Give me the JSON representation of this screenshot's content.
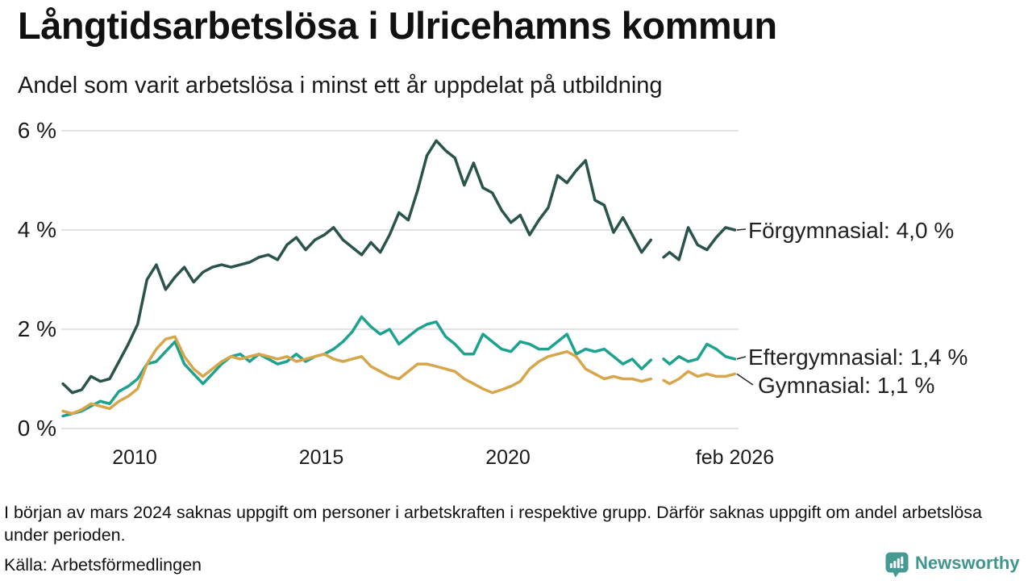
{
  "chart_data": {
    "type": "line",
    "title": "Långtidsarbetslösa i Ulricehamns kommun",
    "subtitle": "Andel som varit arbetslösa i minst ett år uppdelat på utbildning",
    "x_unit": "decimal_year",
    "xlim": [
      2008.08,
      2026.08
    ],
    "ylim": [
      0,
      6.3
    ],
    "grid": "horizontal",
    "y_ticks": [
      {
        "value": 0,
        "label": "0 %"
      },
      {
        "value": 2,
        "label": "2 %"
      },
      {
        "value": 4,
        "label": "4 %"
      },
      {
        "value": 6,
        "label": "6 %"
      }
    ],
    "x_ticks": [
      {
        "value": 2010,
        "label": "2010"
      },
      {
        "value": 2015,
        "label": "2015"
      },
      {
        "value": 2020,
        "label": "2020"
      },
      {
        "value": 2026.08,
        "label": "feb 2026"
      }
    ],
    "x": [
      2008.08,
      2008.33,
      2008.58,
      2008.83,
      2009.08,
      2009.33,
      2009.58,
      2009.83,
      2010.08,
      2010.33,
      2010.58,
      2010.83,
      2011.08,
      2011.33,
      2011.58,
      2011.83,
      2012.08,
      2012.33,
      2012.58,
      2012.83,
      2013.08,
      2013.33,
      2013.58,
      2013.83,
      2014.08,
      2014.33,
      2014.58,
      2014.83,
      2015.08,
      2015.33,
      2015.58,
      2015.83,
      2016.08,
      2016.33,
      2016.58,
      2016.83,
      2017.08,
      2017.33,
      2017.58,
      2017.83,
      2018.08,
      2018.33,
      2018.58,
      2018.83,
      2019.08,
      2019.33,
      2019.58,
      2019.83,
      2020.08,
      2020.33,
      2020.58,
      2020.83,
      2021.08,
      2021.33,
      2021.58,
      2021.83,
      2022.08,
      2022.33,
      2022.58,
      2022.83,
      2023.08,
      2023.33,
      2023.58,
      2023.83,
      2024.0,
      2024.17,
      2024.33,
      2024.58,
      2024.83,
      2025.08,
      2025.33,
      2025.58,
      2025.83,
      2026.08
    ],
    "series": [
      {
        "name": "Förgymnasial",
        "end_label": "Förgymnasial: 4,0 %",
        "end_value": "4,0 %",
        "color": "#2a544b",
        "values": [
          0.9,
          0.72,
          0.78,
          1.05,
          0.95,
          1.0,
          1.35,
          1.7,
          2.1,
          3.0,
          3.3,
          2.8,
          3.05,
          3.25,
          2.95,
          3.15,
          3.25,
          3.3,
          3.25,
          3.3,
          3.35,
          3.45,
          3.5,
          3.4,
          3.7,
          3.85,
          3.6,
          3.8,
          3.9,
          4.05,
          3.8,
          3.65,
          3.5,
          3.75,
          3.55,
          3.9,
          4.35,
          4.2,
          4.8,
          5.5,
          5.8,
          5.6,
          5.45,
          4.9,
          5.35,
          4.85,
          4.75,
          4.4,
          4.15,
          4.3,
          3.9,
          4.2,
          4.45,
          5.1,
          4.95,
          5.2,
          5.4,
          4.6,
          4.5,
          3.95,
          4.25,
          3.9,
          3.55,
          3.8,
          null,
          3.45,
          3.55,
          3.4,
          4.05,
          3.7,
          3.6,
          3.85,
          4.05,
          4.0
        ]
      },
      {
        "name": "Eftergymnasial",
        "end_label": "Eftergymnasial: 1,4 %",
        "end_value": "1,4 %",
        "color": "#1ca28e",
        "values": [
          0.25,
          0.3,
          0.35,
          0.45,
          0.55,
          0.5,
          0.75,
          0.85,
          1.0,
          1.3,
          1.35,
          1.55,
          1.75,
          1.3,
          1.1,
          0.9,
          1.1,
          1.3,
          1.45,
          1.5,
          1.35,
          1.5,
          1.4,
          1.3,
          1.35,
          1.5,
          1.35,
          1.45,
          1.5,
          1.6,
          1.75,
          1.95,
          2.25,
          2.05,
          1.9,
          2.0,
          1.7,
          1.85,
          2.0,
          2.1,
          2.15,
          1.85,
          1.7,
          1.5,
          1.5,
          1.9,
          1.75,
          1.6,
          1.55,
          1.75,
          1.7,
          1.6,
          1.6,
          1.75,
          1.9,
          1.5,
          1.6,
          1.55,
          1.6,
          1.45,
          1.3,
          1.4,
          1.2,
          1.38,
          null,
          1.4,
          1.3,
          1.45,
          1.35,
          1.4,
          1.7,
          1.6,
          1.45,
          1.4
        ]
      },
      {
        "name": "Gymnasial",
        "end_label": "Gymnasial: 1,1 %",
        "end_value": "1,1 %",
        "color": "#d7a64b",
        "values": [
          0.35,
          0.3,
          0.38,
          0.5,
          0.45,
          0.4,
          0.55,
          0.65,
          0.8,
          1.3,
          1.6,
          1.8,
          1.85,
          1.45,
          1.2,
          1.05,
          1.2,
          1.35,
          1.45,
          1.4,
          1.45,
          1.5,
          1.45,
          1.4,
          1.45,
          1.35,
          1.4,
          1.45,
          1.5,
          1.4,
          1.35,
          1.4,
          1.45,
          1.25,
          1.15,
          1.05,
          1.0,
          1.15,
          1.3,
          1.3,
          1.25,
          1.2,
          1.15,
          1.0,
          0.9,
          0.8,
          0.72,
          0.78,
          0.85,
          0.95,
          1.2,
          1.35,
          1.45,
          1.5,
          1.55,
          1.45,
          1.2,
          1.1,
          1.0,
          1.05,
          1.0,
          1.0,
          0.95,
          1.0,
          null,
          0.97,
          0.9,
          1.0,
          1.15,
          1.05,
          1.1,
          1.05,
          1.05,
          1.1
        ]
      }
    ]
  },
  "footer": {
    "note": "I början av mars 2024 saknas uppgift om personer i arbetskraften i respektive grupp. Därför saknas uppgift om andel arbetslösa under perioden.",
    "source": "Källa: Arbetsförmedlingen"
  },
  "branding": {
    "name": "Newsworthy",
    "color": "#3f968d",
    "icon": "speech-bubble-bar-chart"
  }
}
